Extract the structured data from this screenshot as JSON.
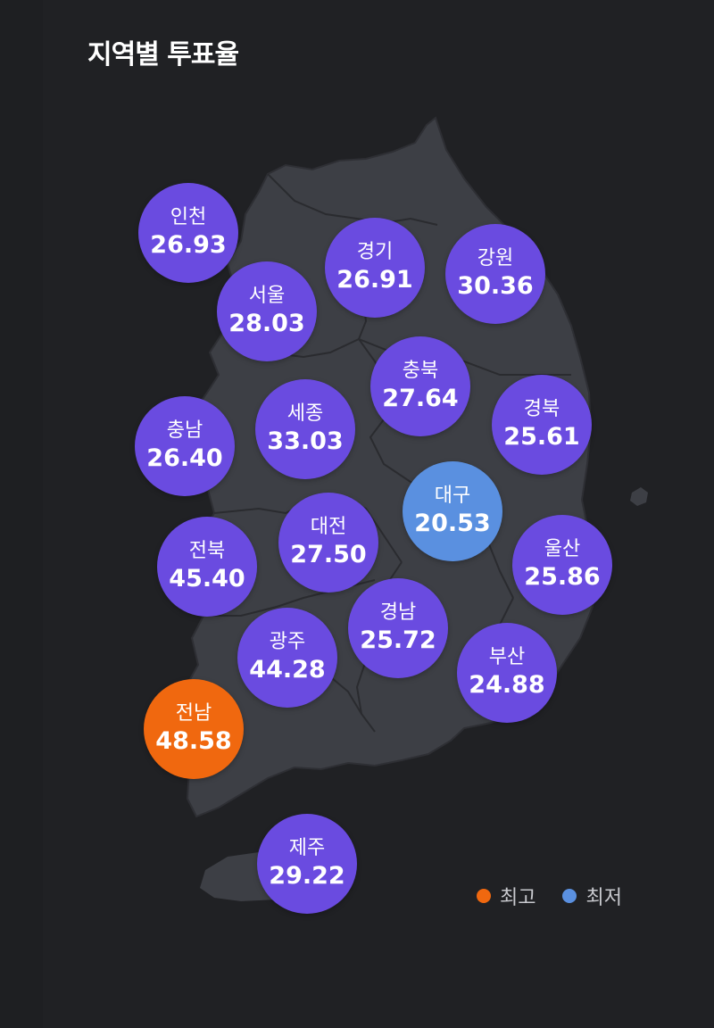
{
  "title": "지역별 투표율",
  "colors": {
    "default": "#6a4be0",
    "highest": "#f0680f",
    "lowest": "#5a90e0",
    "land": "#3d3f45",
    "border": "#2a2b2f",
    "background": "#202124"
  },
  "regions": [
    {
      "name": "인천",
      "value": "26.93",
      "status": "default"
    },
    {
      "name": "경기",
      "value": "26.91",
      "status": "default"
    },
    {
      "name": "강원",
      "value": "30.36",
      "status": "default"
    },
    {
      "name": "서울",
      "value": "28.03",
      "status": "default"
    },
    {
      "name": "충북",
      "value": "27.64",
      "status": "default"
    },
    {
      "name": "충남",
      "value": "26.40",
      "status": "default"
    },
    {
      "name": "세종",
      "value": "33.03",
      "status": "default"
    },
    {
      "name": "경북",
      "value": "25.61",
      "status": "default"
    },
    {
      "name": "대구",
      "value": "20.53",
      "status": "lowest"
    },
    {
      "name": "전북",
      "value": "45.40",
      "status": "default"
    },
    {
      "name": "대전",
      "value": "27.50",
      "status": "default"
    },
    {
      "name": "울산",
      "value": "25.86",
      "status": "default"
    },
    {
      "name": "경남",
      "value": "25.72",
      "status": "default"
    },
    {
      "name": "광주",
      "value": "44.28",
      "status": "default"
    },
    {
      "name": "부산",
      "value": "24.88",
      "status": "default"
    },
    {
      "name": "전남",
      "value": "48.58",
      "status": "highest"
    },
    {
      "name": "제주",
      "value": "29.22",
      "status": "default"
    }
  ],
  "legend": {
    "highest_label": "최고",
    "lowest_label": "최저"
  }
}
